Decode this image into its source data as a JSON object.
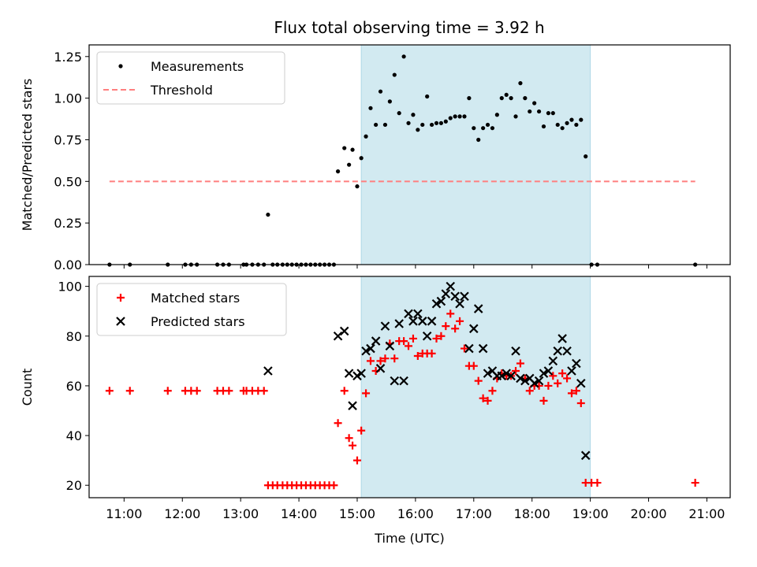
{
  "title": "Flux total observing time = 3.92 h",
  "colors": {
    "band": "#add8e6",
    "threshold": "#ff7f7f",
    "matched": "#ff0000",
    "predicted": "#000000",
    "measure": "#000000"
  },
  "chart_data": [
    {
      "type": "scatter",
      "ylabel": "Matched/Predicted stars",
      "ylim": [
        0,
        1.32
      ],
      "yticks": [
        "0.00",
        "0.25",
        "0.50",
        "0.75",
        "1.00",
        "1.25"
      ],
      "xlim": [
        10.4,
        21.4
      ],
      "shaded_range": [
        15.07,
        19.0
      ],
      "legend_placement": "upper left",
      "series": [
        {
          "name": "Measurements",
          "points": [
            [
              10.75,
              0
            ],
            [
              11.1,
              0
            ],
            [
              11.75,
              0
            ],
            [
              12.05,
              0
            ],
            [
              12.15,
              0
            ],
            [
              12.25,
              0
            ],
            [
              12.6,
              0
            ],
            [
              12.7,
              0
            ],
            [
              12.8,
              0
            ],
            [
              13.05,
              0
            ],
            [
              13.1,
              0
            ],
            [
              13.2,
              0
            ],
            [
              13.3,
              0
            ],
            [
              13.4,
              0
            ],
            [
              13.47,
              0.3
            ],
            [
              13.55,
              0
            ],
            [
              13.63,
              0
            ],
            [
              13.72,
              0
            ],
            [
              13.8,
              0
            ],
            [
              13.88,
              0
            ],
            [
              13.96,
              0
            ],
            [
              14.04,
              0
            ],
            [
              14.12,
              0
            ],
            [
              14.2,
              0
            ],
            [
              14.28,
              0
            ],
            [
              14.36,
              0
            ],
            [
              14.44,
              0
            ],
            [
              14.52,
              0
            ],
            [
              14.6,
              0
            ],
            [
              14.67,
              0.56
            ],
            [
              14.78,
              0.7
            ],
            [
              14.86,
              0.6
            ],
            [
              14.92,
              0.69
            ],
            [
              15.0,
              0.47
            ],
            [
              15.07,
              0.64
            ],
            [
              15.15,
              0.77
            ],
            [
              15.23,
              0.94
            ],
            [
              15.32,
              0.84
            ],
            [
              15.4,
              1.04
            ],
            [
              15.48,
              0.84
            ],
            [
              15.56,
              0.98
            ],
            [
              15.64,
              1.14
            ],
            [
              15.72,
              0.91
            ],
            [
              15.8,
              1.25
            ],
            [
              15.88,
              0.85
            ],
            [
              15.96,
              0.9
            ],
            [
              16.04,
              0.81
            ],
            [
              16.12,
              0.84
            ],
            [
              16.2,
              1.01
            ],
            [
              16.28,
              0.84
            ],
            [
              16.36,
              0.85
            ],
            [
              16.44,
              0.85
            ],
            [
              16.52,
              0.86
            ],
            [
              16.6,
              0.88
            ],
            [
              16.68,
              0.89
            ],
            [
              16.76,
              0.89
            ],
            [
              16.84,
              0.89
            ],
            [
              16.92,
              1.0
            ],
            [
              17.0,
              0.82
            ],
            [
              17.08,
              0.75
            ],
            [
              17.16,
              0.82
            ],
            [
              17.24,
              0.84
            ],
            [
              17.32,
              0.82
            ],
            [
              17.4,
              0.9
            ],
            [
              17.48,
              1.0
            ],
            [
              17.56,
              1.02
            ],
            [
              17.64,
              1.0
            ],
            [
              17.72,
              0.89
            ],
            [
              17.8,
              1.09
            ],
            [
              17.88,
              1.0
            ],
            [
              17.96,
              0.92
            ],
            [
              18.04,
              0.97
            ],
            [
              18.12,
              0.92
            ],
            [
              18.2,
              0.83
            ],
            [
              18.28,
              0.91
            ],
            [
              18.36,
              0.91
            ],
            [
              18.44,
              0.84
            ],
            [
              18.52,
              0.82
            ],
            [
              18.6,
              0.85
            ],
            [
              18.68,
              0.87
            ],
            [
              18.76,
              0.84
            ],
            [
              18.84,
              0.87
            ],
            [
              18.92,
              0.65
            ],
            [
              19.02,
              0
            ],
            [
              19.12,
              0
            ],
            [
              20.8,
              0
            ]
          ]
        },
        {
          "name": "Threshold",
          "points": [
            [
              10.75,
              0.5
            ],
            [
              20.8,
              0.5
            ]
          ]
        }
      ]
    },
    {
      "type": "scatter",
      "ylabel": "Count",
      "xlabel": "Time (UTC)",
      "ylim": [
        15,
        104
      ],
      "yticks": [
        "20",
        "40",
        "60",
        "80",
        "100"
      ],
      "xlim": [
        10.4,
        21.4
      ],
      "xticks": [
        [
          11,
          "11:00"
        ],
        [
          12,
          "12:00"
        ],
        [
          13,
          "13:00"
        ],
        [
          14,
          "14:00"
        ],
        [
          15,
          "15:00"
        ],
        [
          16,
          "16:00"
        ],
        [
          17,
          "17:00"
        ],
        [
          18,
          "18:00"
        ],
        [
          19,
          "19:00"
        ],
        [
          20,
          "20:00"
        ],
        [
          21,
          "21:00"
        ]
      ],
      "shaded_range": [
        15.07,
        19.0
      ],
      "legend_placement": "upper left",
      "series": [
        {
          "name": "Matched stars",
          "points": [
            [
              10.75,
              58
            ],
            [
              11.1,
              58
            ],
            [
              11.75,
              58
            ],
            [
              12.05,
              58
            ],
            [
              12.15,
              58
            ],
            [
              12.25,
              58
            ],
            [
              12.6,
              58
            ],
            [
              12.7,
              58
            ],
            [
              12.8,
              58
            ],
            [
              13.05,
              58
            ],
            [
              13.1,
              58
            ],
            [
              13.2,
              58
            ],
            [
              13.3,
              58
            ],
            [
              13.4,
              58
            ],
            [
              13.47,
              20
            ],
            [
              13.55,
              20
            ],
            [
              13.63,
              20
            ],
            [
              13.72,
              20
            ],
            [
              13.8,
              20
            ],
            [
              13.88,
              20
            ],
            [
              13.96,
              20
            ],
            [
              14.04,
              20
            ],
            [
              14.12,
              20
            ],
            [
              14.2,
              20
            ],
            [
              14.28,
              20
            ],
            [
              14.36,
              20
            ],
            [
              14.44,
              20
            ],
            [
              14.52,
              20
            ],
            [
              14.6,
              20
            ],
            [
              14.67,
              45
            ],
            [
              14.78,
              58
            ],
            [
              14.86,
              39
            ],
            [
              14.92,
              36
            ],
            [
              15.0,
              30
            ],
            [
              15.07,
              42
            ],
            [
              15.15,
              57
            ],
            [
              15.23,
              70
            ],
            [
              15.32,
              66
            ],
            [
              15.4,
              70
            ],
            [
              15.48,
              71
            ],
            [
              15.56,
              77
            ],
            [
              15.64,
              71
            ],
            [
              15.72,
              78
            ],
            [
              15.8,
              78
            ],
            [
              15.88,
              76
            ],
            [
              15.96,
              79
            ],
            [
              16.04,
              72
            ],
            [
              16.12,
              73
            ],
            [
              16.2,
              73
            ],
            [
              16.28,
              73
            ],
            [
              16.36,
              79
            ],
            [
              16.44,
              80
            ],
            [
              16.52,
              84
            ],
            [
              16.6,
              89
            ],
            [
              16.68,
              83
            ],
            [
              16.76,
              86
            ],
            [
              16.84,
              75
            ],
            [
              16.92,
              68
            ],
            [
              17.0,
              68
            ],
            [
              17.08,
              62
            ],
            [
              17.16,
              55
            ],
            [
              17.24,
              54
            ],
            [
              17.32,
              58
            ],
            [
              17.4,
              63
            ],
            [
              17.48,
              65
            ],
            [
              17.56,
              64
            ],
            [
              17.64,
              64
            ],
            [
              17.72,
              66
            ],
            [
              17.8,
              69
            ],
            [
              17.88,
              63
            ],
            [
              17.96,
              58
            ],
            [
              18.04,
              60
            ],
            [
              18.12,
              60
            ],
            [
              18.2,
              54
            ],
            [
              18.28,
              60
            ],
            [
              18.36,
              64
            ],
            [
              18.44,
              61
            ],
            [
              18.52,
              65
            ],
            [
              18.6,
              63
            ],
            [
              18.68,
              57
            ],
            [
              18.76,
              58
            ],
            [
              18.84,
              53
            ],
            [
              18.92,
              21
            ],
            [
              19.02,
              21
            ],
            [
              19.12,
              21
            ],
            [
              20.8,
              21
            ]
          ]
        },
        {
          "name": "Predicted stars",
          "points": [
            [
              13.47,
              66
            ],
            [
              14.67,
              80
            ],
            [
              14.78,
              82
            ],
            [
              14.86,
              65
            ],
            [
              14.92,
              52
            ],
            [
              15.0,
              64
            ],
            [
              15.07,
              65
            ],
            [
              15.15,
              74
            ],
            [
              15.23,
              75
            ],
            [
              15.32,
              78
            ],
            [
              15.4,
              67
            ],
            [
              15.48,
              84
            ],
            [
              15.56,
              76
            ],
            [
              15.64,
              62
            ],
            [
              15.72,
              85
            ],
            [
              15.8,
              62
            ],
            [
              15.88,
              89
            ],
            [
              15.96,
              86
            ],
            [
              16.04,
              89
            ],
            [
              16.12,
              86
            ],
            [
              16.2,
              80
            ],
            [
              16.28,
              86
            ],
            [
              16.36,
              93
            ],
            [
              16.44,
              94
            ],
            [
              16.52,
              97
            ],
            [
              16.6,
              100
            ],
            [
              16.68,
              96
            ],
            [
              16.76,
              93
            ],
            [
              16.84,
              96
            ],
            [
              16.92,
              75
            ],
            [
              17.0,
              83
            ],
            [
              17.08,
              91
            ],
            [
              17.16,
              75
            ],
            [
              17.24,
              65
            ],
            [
              17.32,
              66
            ],
            [
              17.4,
              64
            ],
            [
              17.48,
              64
            ],
            [
              17.56,
              65
            ],
            [
              17.64,
              64
            ],
            [
              17.72,
              74
            ],
            [
              17.8,
              63
            ],
            [
              17.88,
              62
            ],
            [
              17.96,
              63
            ],
            [
              18.04,
              61
            ],
            [
              18.12,
              62
            ],
            [
              18.2,
              65
            ],
            [
              18.28,
              66
            ],
            [
              18.36,
              70
            ],
            [
              18.44,
              74
            ],
            [
              18.52,
              79
            ],
            [
              18.6,
              74
            ],
            [
              18.68,
              66
            ],
            [
              18.76,
              69
            ],
            [
              18.84,
              61
            ],
            [
              18.92,
              32
            ]
          ]
        }
      ]
    }
  ]
}
